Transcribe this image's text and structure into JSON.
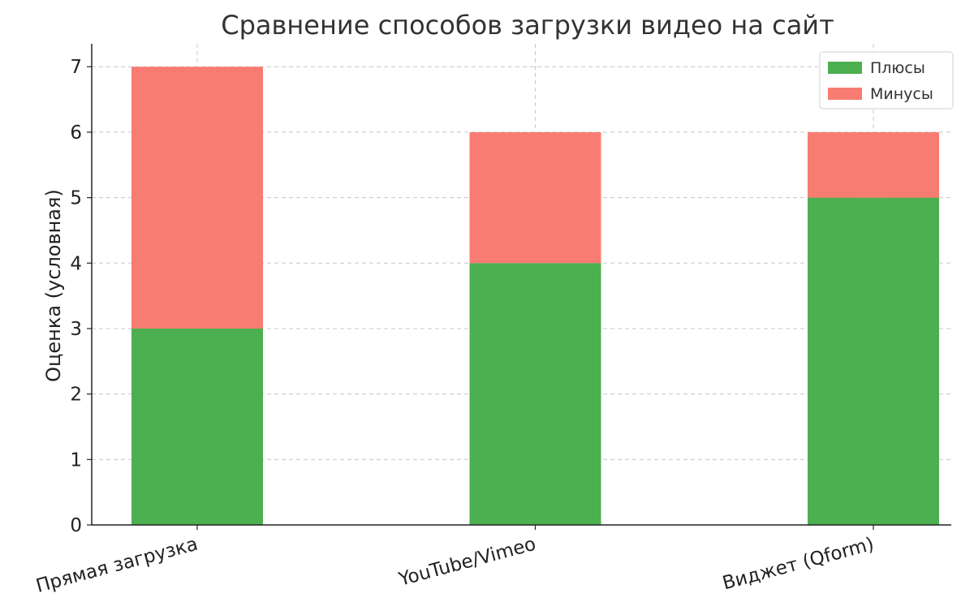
{
  "chart_data": {
    "type": "bar",
    "stacked": true,
    "title": "Сравнение способов загрузки видео на сайт",
    "xlabel": "",
    "ylabel": "Оценка (условная)",
    "categories": [
      "Прямая загрузка",
      "YouTube/Vimeo",
      "Виджет (Qform)"
    ],
    "series": [
      {
        "name": "Плюсы",
        "values": [
          3,
          4,
          5
        ],
        "color": "#4caf50"
      },
      {
        "name": "Минусы",
        "values": [
          4,
          2,
          1
        ],
        "color": "#f87c72"
      }
    ],
    "ylim": [
      0,
      7.35
    ],
    "yticks": [
      0,
      1,
      2,
      3,
      4,
      5,
      6,
      7
    ],
    "grid": true,
    "legend": "top-right",
    "xtick_rotation": -15
  }
}
